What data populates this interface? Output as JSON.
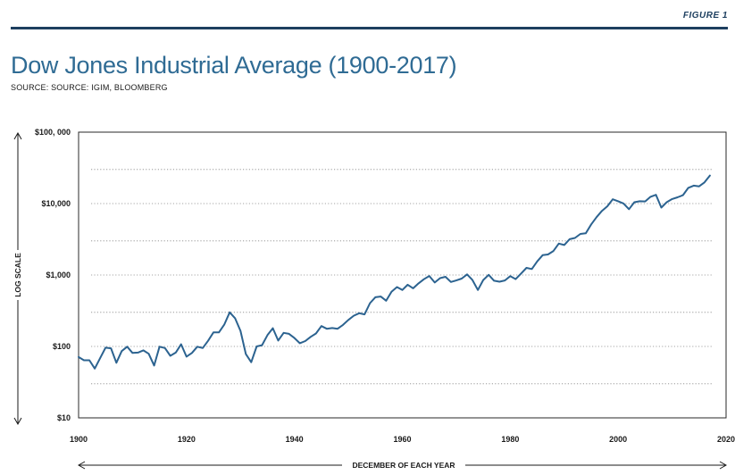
{
  "header": {
    "figure_label": "FIGURE 1",
    "title": "Dow Jones Industrial Average (1900-2017)",
    "source": "SOURCE: SOURCE: IGIM, BLOOMBERG"
  },
  "colors": {
    "line": "#2c6390",
    "navy": "#1d3f5f",
    "title": "#2f6b94",
    "grid": "#888888"
  },
  "chart_data": {
    "type": "line",
    "title": "Dow Jones Industrial Average (1900-2017)",
    "xlabel": "DECEMBER OF EACH YEAR",
    "ylabel": "LOG SCALE",
    "yscale": "log",
    "xlim": [
      1900,
      2020
    ],
    "ylim": [
      10,
      100000
    ],
    "grid": true,
    "x_ticks": [
      1900,
      1920,
      1940,
      1960,
      1980,
      2000,
      2020
    ],
    "x_tick_labels": [
      "1900",
      "1920",
      "1940",
      "1960",
      "1980",
      "2000",
      "2020"
    ],
    "y_ticks": [
      10,
      100,
      1000,
      10000,
      100000
    ],
    "y_tick_labels": [
      "$10",
      "$100",
      "$1,000",
      "$10,000",
      "$100, 000"
    ],
    "grid_lines_y": [
      30,
      100,
      300,
      1000,
      3000,
      10000,
      30000
    ],
    "series": [
      {
        "values": [
          [
            1900,
            71
          ],
          [
            1901,
            64
          ],
          [
            1902,
            64
          ],
          [
            1903,
            49
          ],
          [
            1904,
            69
          ],
          [
            1905,
            96
          ],
          [
            1906,
            94
          ],
          [
            1907,
            59
          ],
          [
            1908,
            86
          ],
          [
            1909,
            99
          ],
          [
            1910,
            81
          ],
          [
            1911,
            82
          ],
          [
            1912,
            88
          ],
          [
            1913,
            79
          ],
          [
            1914,
            54
          ],
          [
            1915,
            99
          ],
          [
            1916,
            95
          ],
          [
            1917,
            74
          ],
          [
            1918,
            82
          ],
          [
            1919,
            107
          ],
          [
            1920,
            72
          ],
          [
            1921,
            81
          ],
          [
            1922,
            99
          ],
          [
            1923,
            95
          ],
          [
            1924,
            120
          ],
          [
            1925,
            157
          ],
          [
            1926,
            157
          ],
          [
            1927,
            202
          ],
          [
            1928,
            300
          ],
          [
            1929,
            248
          ],
          [
            1930,
            165
          ],
          [
            1931,
            78
          ],
          [
            1932,
            60
          ],
          [
            1933,
            100
          ],
          [
            1934,
            104
          ],
          [
            1935,
            144
          ],
          [
            1936,
            180
          ],
          [
            1937,
            121
          ],
          [
            1938,
            155
          ],
          [
            1939,
            150
          ],
          [
            1940,
            131
          ],
          [
            1941,
            111
          ],
          [
            1942,
            119
          ],
          [
            1943,
            136
          ],
          [
            1944,
            152
          ],
          [
            1945,
            193
          ],
          [
            1946,
            177
          ],
          [
            1947,
            181
          ],
          [
            1948,
            177
          ],
          [
            1949,
            200
          ],
          [
            1950,
            235
          ],
          [
            1951,
            269
          ],
          [
            1952,
            292
          ],
          [
            1953,
            281
          ],
          [
            1954,
            404
          ],
          [
            1955,
            488
          ],
          [
            1956,
            500
          ],
          [
            1957,
            436
          ],
          [
            1958,
            584
          ],
          [
            1959,
            679
          ],
          [
            1960,
            616
          ],
          [
            1961,
            731
          ],
          [
            1962,
            652
          ],
          [
            1963,
            763
          ],
          [
            1964,
            874
          ],
          [
            1965,
            969
          ],
          [
            1966,
            786
          ],
          [
            1967,
            905
          ],
          [
            1968,
            944
          ],
          [
            1969,
            800
          ],
          [
            1970,
            839
          ],
          [
            1971,
            890
          ],
          [
            1972,
            1020
          ],
          [
            1973,
            851
          ],
          [
            1974,
            616
          ],
          [
            1975,
            852
          ],
          [
            1976,
            1005
          ],
          [
            1977,
            831
          ],
          [
            1978,
            805
          ],
          [
            1979,
            839
          ],
          [
            1980,
            964
          ],
          [
            1981,
            875
          ],
          [
            1982,
            1047
          ],
          [
            1983,
            1259
          ],
          [
            1984,
            1212
          ],
          [
            1985,
            1547
          ],
          [
            1986,
            1896
          ],
          [
            1987,
            1939
          ],
          [
            1988,
            2169
          ],
          [
            1989,
            2753
          ],
          [
            1990,
            2634
          ],
          [
            1991,
            3169
          ],
          [
            1992,
            3301
          ],
          [
            1993,
            3754
          ],
          [
            1994,
            3834
          ],
          [
            1995,
            5117
          ],
          [
            1996,
            6448
          ],
          [
            1997,
            7908
          ],
          [
            1998,
            9181
          ],
          [
            1999,
            11497
          ],
          [
            2000,
            10787
          ],
          [
            2001,
            10021
          ],
          [
            2002,
            8342
          ],
          [
            2003,
            10454
          ],
          [
            2004,
            10783
          ],
          [
            2005,
            10718
          ],
          [
            2006,
            12463
          ],
          [
            2007,
            13265
          ],
          [
            2008,
            8776
          ],
          [
            2009,
            10428
          ],
          [
            2010,
            11578
          ],
          [
            2011,
            12218
          ],
          [
            2012,
            13104
          ],
          [
            2013,
            16577
          ],
          [
            2014,
            17823
          ],
          [
            2015,
            17425
          ],
          [
            2016,
            19763
          ],
          [
            2017,
            24719
          ]
        ]
      }
    ]
  }
}
